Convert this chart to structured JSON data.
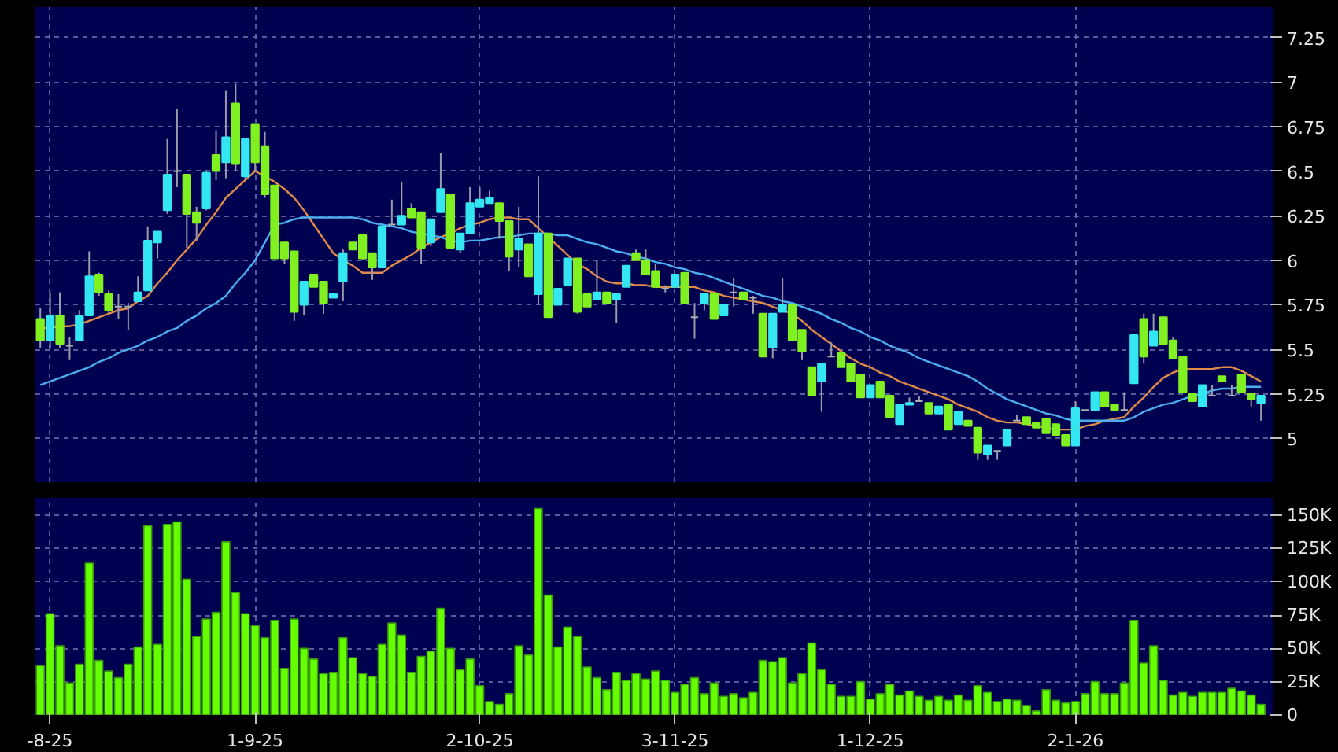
{
  "chart_data": [
    {
      "type": "candlestick",
      "tick_labels": "y",
      "grid": true,
      "categories": [
        null,
        null,
        null,
        null,
        null,
        null,
        null,
        null,
        null,
        null,
        null,
        null,
        null,
        null,
        null,
        null,
        null,
        null,
        null,
        null,
        null,
        null,
        null,
        null,
        null,
        null,
        null,
        null,
        null,
        null,
        null,
        null,
        null,
        null,
        null,
        null,
        null,
        null,
        null,
        null,
        null,
        null,
        null,
        null,
        null,
        null,
        null,
        null,
        null,
        null,
        null,
        null,
        null,
        null,
        null,
        null,
        null,
        null,
        null,
        null,
        null,
        null,
        null,
        null,
        null,
        null,
        null,
        null,
        null,
        null,
        null,
        null,
        null,
        null,
        null,
        null,
        null,
        null,
        null,
        null,
        null,
        null,
        null,
        null,
        null,
        null,
        null,
        null,
        null,
        null,
        null,
        null,
        null,
        null,
        null,
        null,
        null,
        null,
        null,
        null,
        null,
        null,
        null,
        null,
        null,
        null,
        null,
        null,
        null,
        null,
        null,
        null,
        null,
        null,
        null,
        null,
        null,
        null,
        null,
        null,
        null,
        null,
        null,
        null,
        null,
        null
      ],
      "colors": [
        "#80f020",
        "#33e6f2",
        "#80f020",
        "#b0b0b0",
        "#33e6f2",
        "#33e6f2",
        "#80f020",
        "#80f020",
        "#b0b0b0",
        "#b0b0b0",
        "#33e6f2",
        "#33e6f2",
        "#33e6f2",
        "#33e6f2",
        "#b0b0b0",
        "#80f020",
        "#80f020",
        "#33e6f2",
        "#80f020",
        "#33e6f2",
        "#80f020",
        "#33e6f2",
        "#80f020",
        "#80f020",
        "#80f020",
        "#80f020",
        "#80f020",
        "#33e6f2",
        "#80f020",
        "#80f020",
        "#33e6f2",
        "#33e6f2",
        "#80f020",
        "#80f020",
        "#80f020",
        "#33e6f2",
        "#b0b0b0",
        "#33e6f2",
        "#80f020",
        "#80f020",
        "#33e6f2",
        "#33e6f2",
        "#80f020",
        "#33e6f2",
        "#33e6f2",
        "#33e6f2",
        "#33e6f2",
        "#80f020",
        "#80f020",
        "#33e6f2",
        "#80f020",
        "#33e6f2",
        "#80f020",
        "#33e6f2",
        "#33e6f2",
        "#80f020",
        "#80f020",
        "#33e6f2",
        "#80f020",
        "#33e6f2",
        "#33e6f2",
        "#80f020",
        "#80f020",
        "#80f020",
        "#b0b0b0",
        "#33e6f2",
        "#80f020",
        "#b0b0b0",
        "#33e6f2",
        "#80f020",
        "#33e6f2",
        "#b0b0b0",
        "#80f020",
        "#b0b0b0",
        "#80f020",
        "#33e6f2",
        "#33e6f2",
        "#80f020",
        "#80f020",
        "#80f020",
        "#33e6f2",
        "#b0b0b0",
        "#80f020",
        "#80f020",
        "#80f020",
        "#33e6f2",
        "#80f020",
        "#80f020",
        "#33e6f2",
        "#33e6f2",
        "#b0b0b0",
        "#80f020",
        "#33e6f2",
        "#80f020",
        "#33e6f2",
        "#80f020",
        "#80f020",
        "#33e6f2",
        "#b0b0b0",
        "#33e6f2",
        "#b0b0b0",
        "#80f020",
        "#80f020",
        "#80f020",
        "#80f020",
        "#80f020",
        "#33e6f2",
        "#b0b0b0",
        "#33e6f2",
        "#80f020",
        "#80f020",
        "#b0b0b0",
        "#33e6f2",
        "#80f020",
        "#33e6f2",
        "#80f020",
        "#80f020",
        "#80f020",
        "#80f020",
        "#33e6f2",
        "#b0b0b0",
        "#80f020",
        "#b0b0b0",
        "#80f020",
        "#80f020",
        "#33e6f2"
      ],
      "ohlc": [
        [
          5.67,
          5.73,
          5.51,
          5.55
        ],
        [
          5.55,
          5.82,
          5.51,
          5.69
        ],
        [
          5.69,
          5.82,
          5.51,
          5.53
        ],
        [
          5.52,
          5.57,
          5.44,
          5.52
        ],
        [
          5.55,
          5.72,
          5.55,
          5.69
        ],
        [
          5.69,
          6.05,
          5.69,
          5.91
        ],
        [
          5.92,
          5.93,
          5.8,
          5.82
        ],
        [
          5.81,
          5.83,
          5.7,
          5.72
        ],
        [
          5.74,
          5.81,
          5.67,
          5.74
        ],
        [
          5.74,
          5.76,
          5.61,
          5.74
        ],
        [
          5.77,
          5.91,
          5.77,
          5.82
        ],
        [
          5.83,
          6.19,
          5.83,
          6.11
        ],
        [
          6.1,
          6.16,
          6.01,
          6.16
        ],
        [
          6.28,
          6.68,
          6.26,
          6.48
        ],
        [
          6.5,
          6.85,
          6.41,
          6.5
        ],
        [
          6.48,
          6.48,
          6.07,
          6.26
        ],
        [
          6.27,
          6.3,
          6.11,
          6.21
        ],
        [
          6.29,
          6.5,
          6.28,
          6.49
        ],
        [
          6.59,
          6.73,
          6.45,
          6.5
        ],
        [
          6.55,
          6.95,
          6.46,
          6.69
        ],
        [
          6.88,
          6.99,
          6.5,
          6.54
        ],
        [
          6.47,
          6.68,
          6.45,
          6.68
        ],
        [
          6.76,
          6.76,
          6.5,
          6.55
        ],
        [
          6.64,
          6.72,
          6.35,
          6.37
        ],
        [
          6.42,
          6.42,
          6.01,
          6.01
        ],
        [
          6.1,
          6.1,
          5.98,
          6.01
        ],
        [
          6.05,
          6.05,
          5.66,
          5.71
        ],
        [
          5.75,
          5.88,
          5.69,
          5.88
        ],
        [
          5.92,
          5.92,
          5.85,
          5.85
        ],
        [
          5.88,
          5.88,
          5.7,
          5.76
        ],
        [
          5.79,
          5.81,
          5.79,
          5.81
        ],
        [
          5.88,
          6.06,
          5.77,
          6.04
        ],
        [
          6.1,
          6.1,
          6.06,
          6.06
        ],
        [
          6.14,
          6.14,
          6.0,
          6.01
        ],
        [
          6.04,
          6.04,
          5.89,
          5.96
        ],
        [
          5.96,
          6.19,
          5.96,
          6.19
        ],
        [
          6.2,
          6.34,
          6.2,
          6.2
        ],
        [
          6.2,
          6.44,
          6.2,
          6.25
        ],
        [
          6.29,
          6.32,
          6.24,
          6.24
        ],
        [
          6.27,
          6.27,
          5.98,
          6.07
        ],
        [
          6.1,
          6.23,
          6.08,
          6.23
        ],
        [
          6.27,
          6.6,
          6.27,
          6.4
        ],
        [
          6.37,
          6.37,
          6.07,
          6.07
        ],
        [
          6.06,
          6.15,
          6.04,
          6.15
        ],
        [
          6.15,
          6.41,
          6.15,
          6.32
        ],
        [
          6.3,
          6.41,
          6.3,
          6.34
        ],
        [
          6.32,
          6.39,
          6.32,
          6.35
        ],
        [
          6.32,
          6.32,
          6.12,
          6.22
        ],
        [
          6.22,
          6.22,
          5.94,
          6.02
        ],
        [
          6.06,
          6.3,
          5.96,
          6.12
        ],
        [
          6.09,
          6.09,
          5.91,
          5.91
        ],
        [
          5.81,
          6.47,
          5.75,
          6.15
        ],
        [
          6.15,
          6.15,
          5.68,
          5.68
        ],
        [
          5.75,
          5.84,
          5.75,
          5.84
        ],
        [
          5.86,
          6.01,
          5.86,
          6.01
        ],
        [
          6.01,
          6.01,
          5.7,
          5.71
        ],
        [
          5.81,
          5.81,
          5.74,
          5.74
        ],
        [
          5.78,
          6.0,
          5.78,
          5.82
        ],
        [
          5.82,
          5.82,
          5.76,
          5.76
        ],
        [
          5.78,
          5.81,
          5.65,
          5.81
        ],
        [
          5.85,
          5.97,
          5.85,
          5.97
        ],
        [
          6.04,
          6.06,
          6.0,
          6.0
        ],
        [
          6.0,
          6.06,
          5.92,
          5.92
        ],
        [
          5.94,
          5.98,
          5.85,
          5.85
        ],
        [
          5.84,
          5.86,
          5.82,
          5.84
        ],
        [
          5.85,
          5.92,
          5.85,
          5.92
        ],
        [
          5.93,
          5.93,
          5.76,
          5.76
        ],
        [
          5.68,
          5.76,
          5.56,
          5.68
        ],
        [
          5.76,
          5.81,
          5.72,
          5.81
        ],
        [
          5.81,
          5.81,
          5.67,
          5.67
        ],
        [
          5.69,
          5.75,
          5.69,
          5.75
        ],
        [
          5.82,
          5.9,
          5.74,
          5.82
        ],
        [
          5.82,
          5.82,
          5.78,
          5.78
        ],
        [
          5.79,
          5.8,
          5.7,
          5.79
        ],
        [
          5.7,
          5.7,
          5.46,
          5.46
        ],
        [
          5.51,
          5.7,
          5.45,
          5.7
        ],
        [
          5.71,
          5.9,
          5.71,
          5.75
        ],
        [
          5.75,
          5.75,
          5.55,
          5.55
        ],
        [
          5.61,
          5.61,
          5.44,
          5.49
        ],
        [
          5.4,
          5.4,
          5.24,
          5.24
        ],
        [
          5.32,
          5.42,
          5.15,
          5.42
        ],
        [
          5.46,
          5.54,
          5.46,
          5.46
        ],
        [
          5.48,
          5.48,
          5.4,
          5.4
        ],
        [
          5.42,
          5.42,
          5.32,
          5.32
        ],
        [
          5.36,
          5.36,
          5.23,
          5.23
        ],
        [
          5.23,
          5.3,
          5.23,
          5.3
        ],
        [
          5.32,
          5.32,
          5.23,
          5.23
        ],
        [
          5.24,
          5.24,
          5.12,
          5.12
        ],
        [
          5.08,
          5.19,
          5.08,
          5.19
        ],
        [
          5.19,
          5.23,
          5.19,
          5.2
        ],
        [
          5.21,
          5.24,
          5.21,
          5.21
        ],
        [
          5.2,
          5.2,
          5.14,
          5.14
        ],
        [
          5.14,
          5.18,
          5.14,
          5.18
        ],
        [
          5.19,
          5.19,
          5.05,
          5.05
        ],
        [
          5.08,
          5.15,
          5.08,
          5.15
        ],
        [
          5.1,
          5.1,
          5.07,
          5.07
        ],
        [
          5.06,
          5.06,
          4.88,
          4.92
        ],
        [
          4.91,
          4.96,
          4.88,
          4.96
        ],
        [
          4.93,
          4.93,
          4.88,
          4.93
        ],
        [
          4.96,
          5.05,
          4.96,
          5.05
        ],
        [
          5.1,
          5.13,
          5.1,
          5.1
        ],
        [
          5.12,
          5.12,
          5.08,
          5.08
        ],
        [
          5.09,
          5.09,
          5.06,
          5.06
        ],
        [
          5.11,
          5.11,
          5.03,
          5.03
        ],
        [
          5.08,
          5.08,
          5.02,
          5.02
        ],
        [
          5.02,
          5.02,
          4.96,
          4.96
        ],
        [
          4.96,
          5.21,
          4.96,
          5.17
        ],
        [
          5.16,
          5.16,
          5.16,
          5.16
        ],
        [
          5.16,
          5.26,
          5.16,
          5.26
        ],
        [
          5.26,
          5.26,
          5.18,
          5.18
        ],
        [
          5.19,
          5.19,
          5.16,
          5.16
        ],
        [
          5.16,
          5.26,
          5.16,
          5.16
        ],
        [
          5.31,
          5.58,
          5.31,
          5.58
        ],
        [
          5.67,
          5.7,
          5.42,
          5.46
        ],
        [
          5.52,
          5.7,
          5.52,
          5.6
        ],
        [
          5.68,
          5.68,
          5.53,
          5.53
        ],
        [
          5.55,
          5.57,
          5.45,
          5.45
        ],
        [
          5.46,
          5.46,
          5.26,
          5.26
        ],
        [
          5.25,
          5.25,
          5.21,
          5.21
        ],
        [
          5.18,
          5.3,
          5.18,
          5.3
        ],
        [
          5.24,
          5.3,
          5.24,
          5.24
        ],
        [
          5.35,
          5.35,
          5.32,
          5.32
        ],
        [
          5.24,
          5.3,
          5.24,
          5.24
        ],
        [
          5.36,
          5.36,
          5.26,
          5.26
        ],
        [
          5.25,
          5.25,
          5.18,
          5.22
        ],
        [
          5.2,
          5.24,
          5.1,
          5.24
        ]
      ],
      "series": [
        {
          "type": "line",
          "color": "#e08a4a",
          "values": [
            5.62,
            5.62,
            5.63,
            5.63,
            5.64,
            5.66,
            5.68,
            5.7,
            5.72,
            5.73,
            5.77,
            5.8,
            5.87,
            5.93,
            6.0,
            6.06,
            6.12,
            6.2,
            6.27,
            6.35,
            6.4,
            6.45,
            6.5,
            6.47,
            6.44,
            6.4,
            6.35,
            6.28,
            6.2,
            6.12,
            6.04,
            6.0,
            5.97,
            5.93,
            5.93,
            5.93,
            5.97,
            6.0,
            6.03,
            6.07,
            6.1,
            6.13,
            6.15,
            6.18,
            6.2,
            6.21,
            6.23,
            6.24,
            6.24,
            6.23,
            6.23,
            6.18,
            6.13,
            6.08,
            6.03,
            5.98,
            5.95,
            5.91,
            5.88,
            5.87,
            5.87,
            5.86,
            5.86,
            5.85,
            5.85,
            5.85,
            5.85,
            5.85,
            5.83,
            5.82,
            5.8,
            5.79,
            5.78,
            5.77,
            5.76,
            5.74,
            5.72,
            5.7,
            5.66,
            5.61,
            5.57,
            5.53,
            5.49,
            5.45,
            5.42,
            5.4,
            5.37,
            5.35,
            5.32,
            5.3,
            5.28,
            5.26,
            5.24,
            5.22,
            5.19,
            5.17,
            5.15,
            5.12,
            5.1,
            5.09,
            5.09,
            5.08,
            5.07,
            5.06,
            5.05,
            5.05,
            5.05,
            5.07,
            5.08,
            5.1,
            5.11,
            5.12,
            5.18,
            5.23,
            5.29,
            5.34,
            5.37,
            5.39,
            5.39,
            5.39,
            5.39,
            5.4,
            5.4,
            5.38,
            5.35,
            5.32
          ]
        },
        {
          "type": "line",
          "color": "#4aaef0",
          "values": [
            5.3,
            5.32,
            5.34,
            5.36,
            5.38,
            5.4,
            5.43,
            5.45,
            5.48,
            5.5,
            5.52,
            5.55,
            5.57,
            5.6,
            5.62,
            5.66,
            5.69,
            5.73,
            5.76,
            5.8,
            5.87,
            5.93,
            6.0,
            6.1,
            6.2,
            6.21,
            6.23,
            6.24,
            6.24,
            6.24,
            6.24,
            6.24,
            6.24,
            6.23,
            6.21,
            6.2,
            6.19,
            6.18,
            6.16,
            6.15,
            6.14,
            6.13,
            6.11,
            6.1,
            6.11,
            6.11,
            6.12,
            6.13,
            6.13,
            6.14,
            6.15,
            6.15,
            6.15,
            6.14,
            6.14,
            6.12,
            6.1,
            6.09,
            6.07,
            6.05,
            6.04,
            6.02,
            6.01,
            5.99,
            5.98,
            5.96,
            5.95,
            5.93,
            5.92,
            5.9,
            5.88,
            5.86,
            5.84,
            5.82,
            5.8,
            5.79,
            5.77,
            5.76,
            5.74,
            5.72,
            5.7,
            5.67,
            5.65,
            5.62,
            5.6,
            5.57,
            5.55,
            5.52,
            5.5,
            5.48,
            5.45,
            5.43,
            5.41,
            5.39,
            5.37,
            5.35,
            5.32,
            5.28,
            5.25,
            5.22,
            5.2,
            5.18,
            5.16,
            5.14,
            5.13,
            5.11,
            5.1,
            5.1,
            5.1,
            5.1,
            5.1,
            5.1,
            5.12,
            5.15,
            5.17,
            5.19,
            5.2,
            5.22,
            5.24,
            5.25,
            5.27,
            5.28,
            5.28,
            5.29,
            5.29,
            5.29
          ]
        }
      ],
      "ylim": [
        4.755,
        7.42
      ],
      "yticks": [
        5,
        5.25,
        5.5,
        5.75,
        6,
        6.25,
        6.5,
        6.75,
        7,
        7.25
      ]
    },
    {
      "type": "bar",
      "grid": true,
      "color": "#66ff00",
      "categories": [
        null,
        "-8-25",
        null,
        null,
        null,
        null,
        null,
        null,
        null,
        null,
        null,
        null,
        null,
        null,
        null,
        null,
        null,
        null,
        null,
        null,
        null,
        null,
        "1-9-25",
        null,
        null,
        null,
        null,
        null,
        null,
        null,
        null,
        null,
        null,
        null,
        null,
        null,
        null,
        null,
        null,
        null,
        null,
        null,
        null,
        null,
        null,
        "2-10-25",
        null,
        null,
        null,
        null,
        null,
        null,
        null,
        null,
        null,
        null,
        null,
        null,
        null,
        null,
        null,
        null,
        null,
        null,
        null,
        "3-11-25",
        null,
        null,
        null,
        null,
        null,
        null,
        null,
        null,
        null,
        null,
        null,
        null,
        null,
        null,
        null,
        null,
        null,
        null,
        null,
        "1-12-25",
        null,
        null,
        null,
        null,
        null,
        null,
        null,
        null,
        null,
        null,
        null,
        null,
        null,
        null,
        null,
        null,
        null,
        null,
        null,
        null,
        "2-1-26",
        null,
        null,
        null,
        null,
        null,
        null,
        null,
        null,
        null,
        null,
        null,
        null,
        null,
        null,
        null,
        null,
        null,
        null,
        null
      ],
      "values": [
        37000,
        76000,
        52000,
        24000,
        38000,
        114000,
        41000,
        33000,
        28000,
        38000,
        51000,
        142000,
        53000,
        143000,
        145000,
        102000,
        59000,
        72000,
        77000,
        130000,
        92000,
        76000,
        67000,
        58000,
        71000,
        35000,
        72000,
        50000,
        42000,
        31000,
        32000,
        58000,
        43000,
        31000,
        29000,
        53000,
        69000,
        60000,
        32000,
        44000,
        48000,
        80000,
        50000,
        34000,
        42000,
        22000,
        10000,
        8000,
        16000,
        52000,
        45000,
        155000,
        90000,
        51000,
        66000,
        59000,
        36000,
        28000,
        19000,
        32000,
        26000,
        31000,
        27000,
        33000,
        26000,
        17000,
        23000,
        28000,
        16000,
        24000,
        14000,
        16000,
        13000,
        17000,
        41000,
        40000,
        43000,
        24000,
        31000,
        54000,
        34000,
        23000,
        14000,
        14000,
        25000,
        12000,
        16000,
        23000,
        15000,
        18000,
        14000,
        11000,
        14000,
        11000,
        15000,
        11000,
        22000,
        17000,
        10000,
        12000,
        11000,
        7000,
        3000,
        19000,
        11000,
        9000,
        10000,
        16000,
        25000,
        16000,
        16000,
        24000,
        71000,
        39000,
        52000,
        26000,
        15000,
        17000,
        14000,
        17000,
        17000,
        17000,
        20000,
        18000,
        15000,
        8000
      ],
      "ylim": [
        0,
        163000
      ],
      "yticks": [
        {
          "value": 0,
          "label": "0"
        },
        {
          "value": 25000,
          "label": "25K"
        },
        {
          "value": 50000,
          "label": "50K"
        },
        {
          "value": 75000,
          "label": "75K"
        },
        {
          "value": 100000,
          "label": "100K"
        },
        {
          "value": 125000,
          "label": "125K"
        },
        {
          "value": 150000,
          "label": "150K"
        }
      ]
    }
  ]
}
